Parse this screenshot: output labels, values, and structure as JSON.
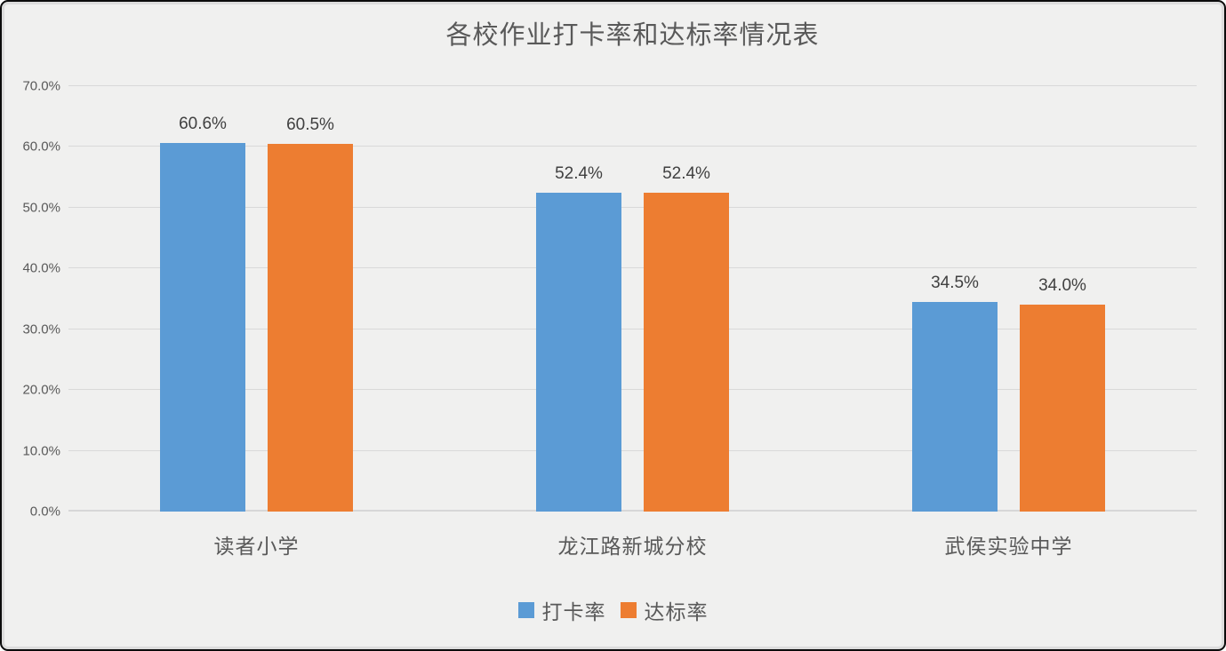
{
  "title": "各校作业打卡率和达标率情况表",
  "chart_data": {
    "type": "bar",
    "title": "各校作业打卡率和达标率情况表",
    "categories": [
      "读者小学",
      "龙江路新城分校",
      "武侯实验中学"
    ],
    "series": [
      {
        "name": "打卡率",
        "color": "#5b9bd5",
        "values": [
          60.6,
          52.4,
          34.5
        ],
        "labels": [
          "60.6%",
          "52.4%",
          "34.5%"
        ]
      },
      {
        "name": "达标率",
        "color": "#ed7d31",
        "values": [
          60.5,
          52.4,
          34.0
        ],
        "labels": [
          "60.5%",
          "52.4%",
          "34.0%"
        ]
      }
    ],
    "ylim": [
      0,
      70
    ],
    "yticks": [
      0,
      10,
      20,
      30,
      40,
      50,
      60,
      70
    ],
    "ytick_labels": [
      "0.0%",
      "10.0%",
      "20.0%",
      "30.0%",
      "40.0%",
      "50.0%",
      "60.0%",
      "70.0%"
    ],
    "grid": true,
    "legend_position": "bottom"
  },
  "colors": {
    "series_blue": "#5b9bd5",
    "series_orange": "#ed7d31",
    "background": "#f0f0ef",
    "gridline": "#d9d9d9",
    "title_text": "#595959",
    "axis_text": "#595959",
    "data_label_text": "#404040",
    "frame_border": "#0b0b0b"
  }
}
